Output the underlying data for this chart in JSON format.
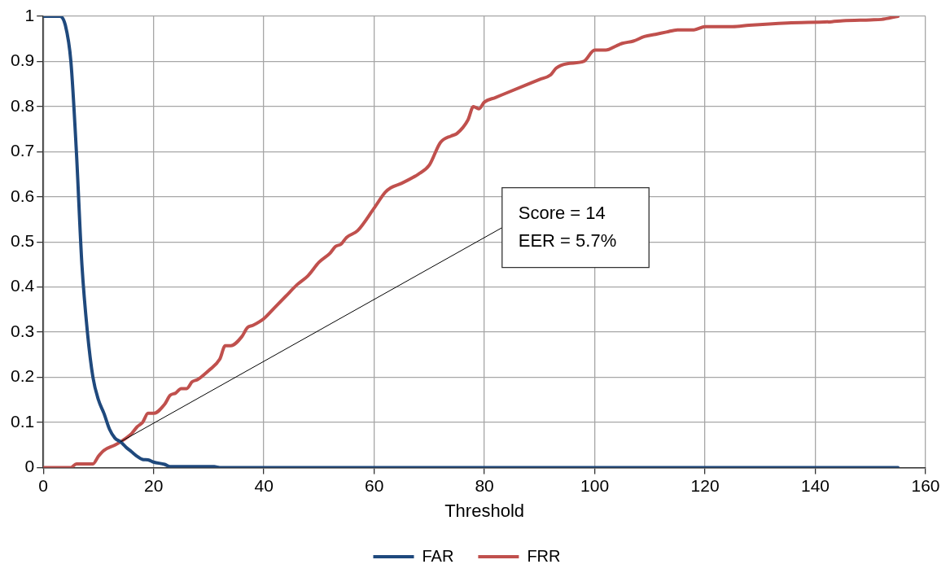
{
  "chart_data": {
    "type": "line",
    "xlabel": "Threshold",
    "xlim": [
      0,
      160
    ],
    "xticks": [
      0,
      20,
      40,
      60,
      80,
      100,
      120,
      140,
      160
    ],
    "ylim": [
      0,
      1
    ],
    "yticks": [
      0,
      0.1,
      0.2,
      0.3,
      0.4,
      0.5,
      0.6,
      0.7,
      0.8,
      0.9,
      1
    ],
    "grid": true,
    "legend": "bottom",
    "marker": "none",
    "line_style": "solid",
    "annotations": [
      {
        "text": "Score = 14\nEER = 5.7%",
        "x": 14,
        "y": 0.057
      }
    ],
    "series": [
      {
        "name": "FAR",
        "color": "#1f497d",
        "x": [
          0,
          3,
          4,
          5,
          6,
          7,
          8,
          9,
          10,
          11,
          12,
          13,
          14,
          15,
          16,
          17,
          18,
          19,
          20,
          22,
          23,
          31,
          32,
          155
        ],
        "values": [
          1,
          1,
          0.98,
          0.9,
          0.7,
          0.45,
          0.3,
          0.2,
          0.15,
          0.12,
          0.085,
          0.065,
          0.057,
          0.045,
          0.035,
          0.025,
          0.018,
          0.017,
          0.012,
          0.007,
          0.002,
          0.002,
          0,
          0
        ]
      },
      {
        "name": "FRR",
        "color": "#c0504d",
        "x": [
          0,
          5,
          6,
          9,
          10,
          11,
          13,
          14,
          16,
          17,
          18,
          19,
          20,
          22,
          23,
          24,
          25,
          26,
          27,
          28,
          30,
          32,
          33,
          34,
          36,
          37,
          38,
          40,
          42,
          44,
          46,
          48,
          50,
          52,
          53,
          54,
          55,
          57,
          60,
          62,
          63,
          65,
          68,
          70,
          72,
          74,
          75,
          77,
          78,
          79,
          80,
          82,
          84,
          88,
          90,
          92,
          93,
          95,
          98,
          100,
          102,
          104,
          105,
          107,
          109,
          111,
          113,
          115,
          118,
          120,
          125,
          128,
          135,
          143,
          145,
          150,
          152,
          155
        ],
        "values": [
          0,
          0,
          0.008,
          0.008,
          0.025,
          0.038,
          0.05,
          0.057,
          0.075,
          0.09,
          0.1,
          0.12,
          0.12,
          0.14,
          0.16,
          0.165,
          0.175,
          0.175,
          0.19,
          0.195,
          0.215,
          0.24,
          0.27,
          0.27,
          0.29,
          0.31,
          0.315,
          0.33,
          0.355,
          0.38,
          0.405,
          0.425,
          0.455,
          0.475,
          0.49,
          0.495,
          0.51,
          0.525,
          0.575,
          0.61,
          0.62,
          0.63,
          0.65,
          0.67,
          0.72,
          0.735,
          0.74,
          0.77,
          0.8,
          0.795,
          0.81,
          0.82,
          0.83,
          0.85,
          0.86,
          0.87,
          0.885,
          0.895,
          0.9,
          0.925,
          0.925,
          0.935,
          0.94,
          0.945,
          0.955,
          0.96,
          0.965,
          0.97,
          0.97,
          0.977,
          0.977,
          0.98,
          0.985,
          0.988,
          0.99,
          0.992,
          0.993,
          1
        ]
      }
    ]
  }
}
